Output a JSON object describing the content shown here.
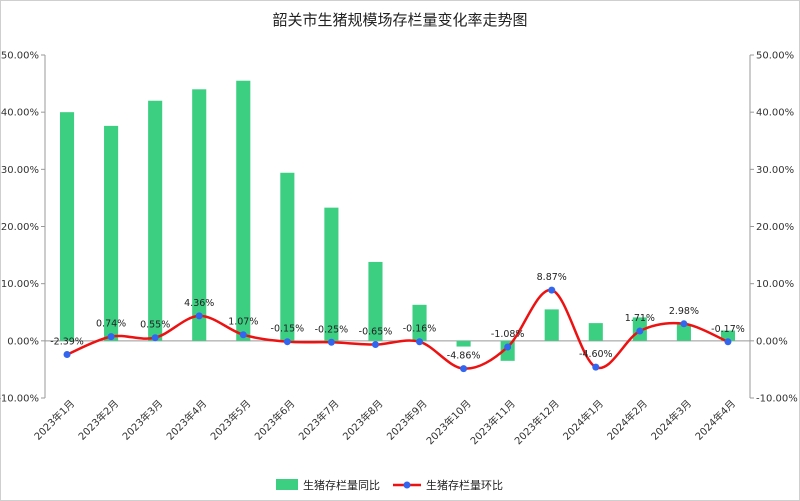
{
  "chart_data": {
    "type": "bar",
    "title": "韶关市生猪规模场存栏量变化率走势图",
    "categories": [
      "2023年1月",
      "2023年2月",
      "2023年3月",
      "2023年4月",
      "2023年5月",
      "2023年6月",
      "2023年7月",
      "2023年8月",
      "2023年9月",
      "2023年10月",
      "2023年11月",
      "2023年12月",
      "2024年1月",
      "2024年2月",
      "2024年3月",
      "2024年4月"
    ],
    "series": [
      {
        "name": "生猪存栏量同比",
        "type": "bar",
        "axis": "left",
        "color": "#3ccf82",
        "values": [
          40.0,
          37.6,
          42.0,
          44.0,
          45.5,
          29.4,
          23.3,
          13.8,
          6.3,
          -1.0,
          -3.5,
          5.5,
          3.1,
          4.1,
          2.9,
          1.8
        ]
      },
      {
        "name": "生猪存栏量环比",
        "type": "line",
        "axis": "right",
        "color": "#ee1111",
        "marker_color": "#3366ee",
        "values": [
          -2.39,
          0.74,
          0.55,
          4.36,
          1.07,
          -0.15,
          -0.25,
          -0.65,
          -0.16,
          -4.86,
          -1.08,
          8.87,
          -4.6,
          1.71,
          2.98,
          -0.17
        ],
        "labels": [
          "-2.39%",
          "0.74%",
          "0.55%",
          "4.36%",
          "1.07%",
          "-0.15%",
          "-0.25%",
          "-0.65%",
          "-0.16%",
          "-4.86%",
          "-1.08%",
          "8.87%",
          "-4.60%",
          "1.71%",
          "2.98%",
          "-0.17%"
        ]
      }
    ],
    "y_left": {
      "range": [
        -10,
        50
      ],
      "ticks": [
        "-10.00%",
        "0.00%",
        "10.00%",
        "20.00%",
        "30.00%",
        "40.00%",
        "50.00%"
      ]
    },
    "y_right": {
      "range": [
        -10,
        50
      ],
      "ticks": [
        "-10.00%",
        "0.00%",
        "10.00%",
        "20.00%",
        "30.00%",
        "40.00%",
        "50.00%"
      ]
    },
    "grid": false,
    "legend_position": "bottom"
  }
}
